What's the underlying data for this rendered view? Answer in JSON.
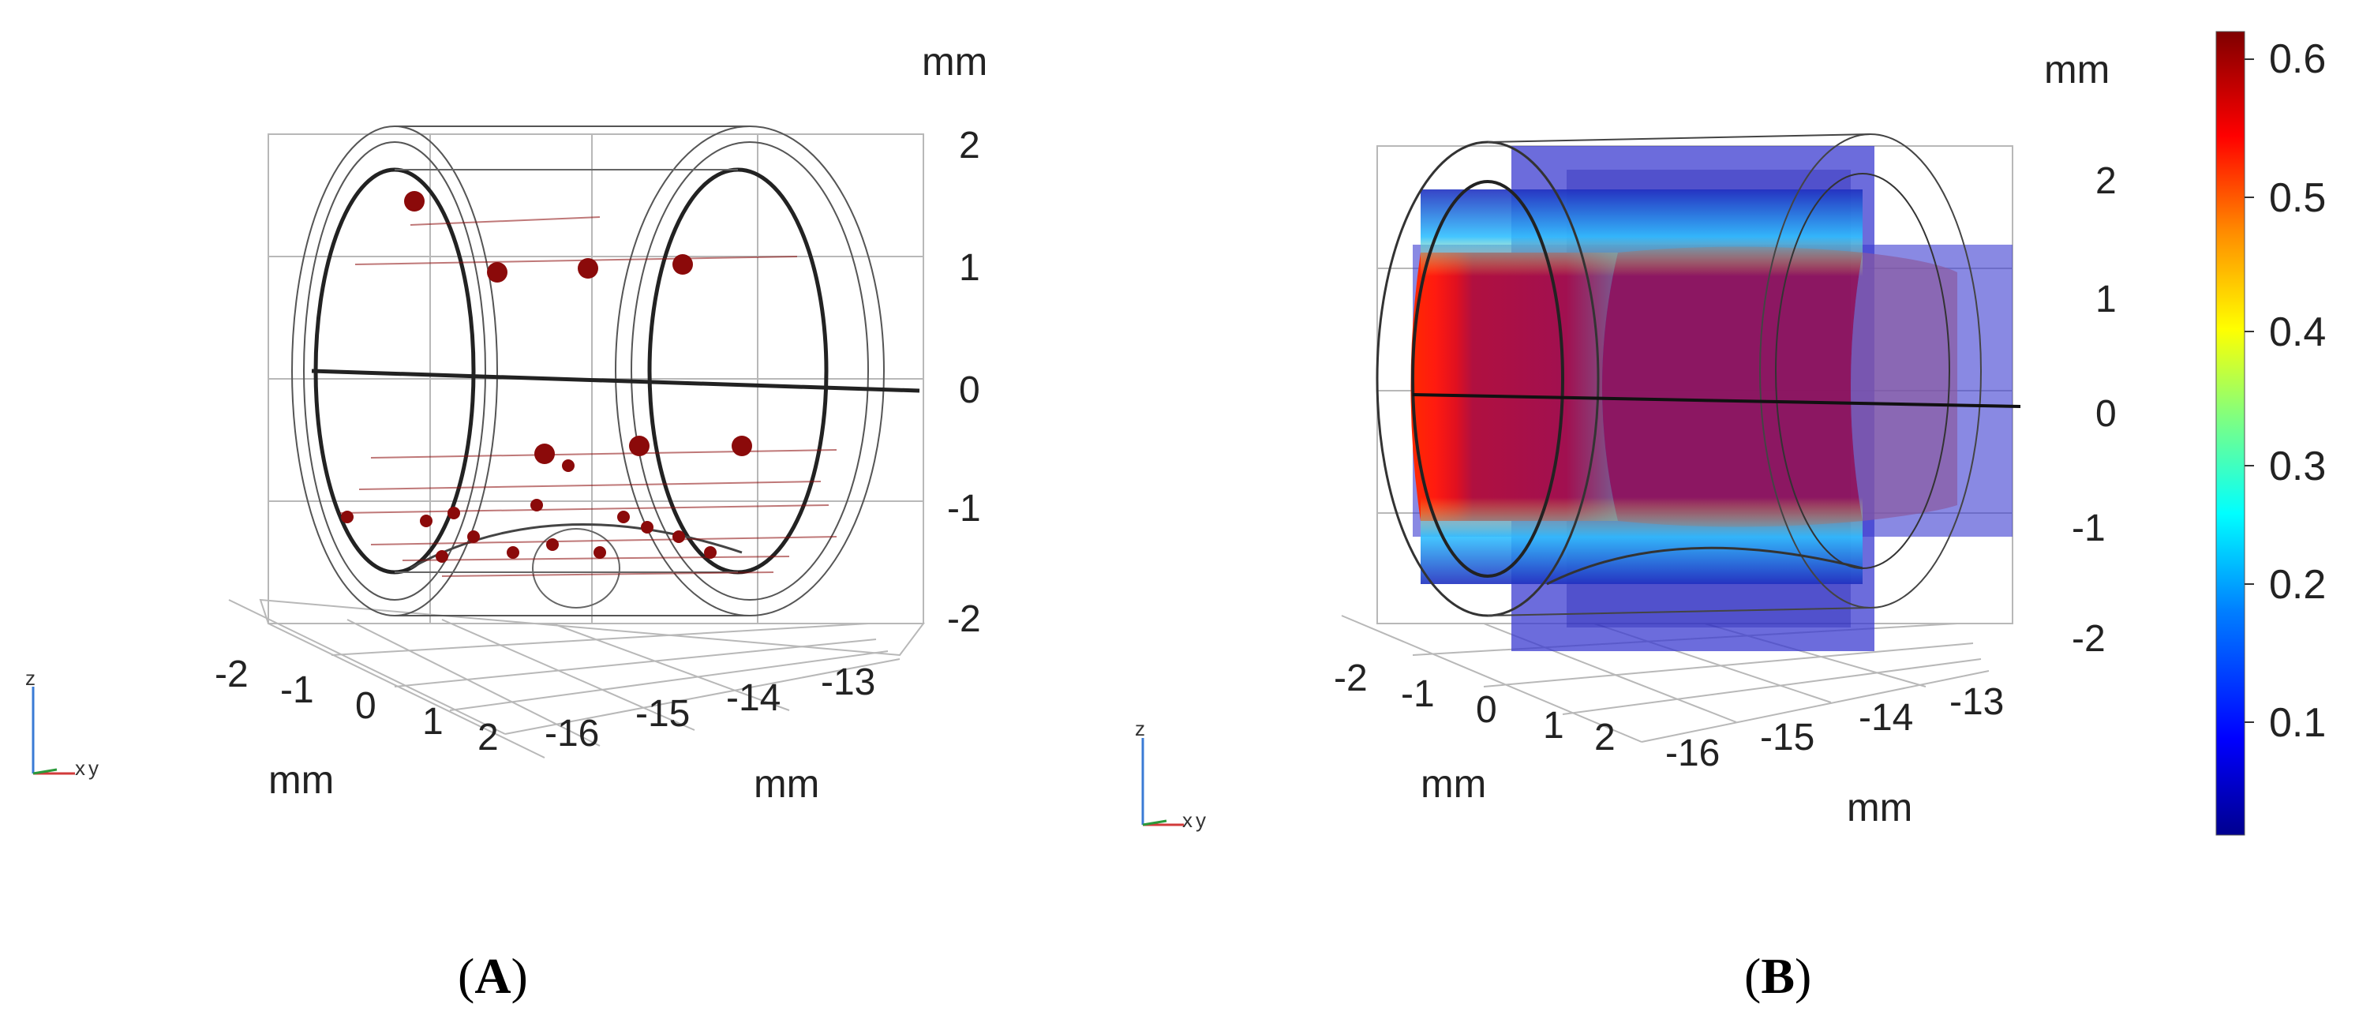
{
  "panels": [
    {
      "caption_letter": "A",
      "z_ticks": [
        "2",
        "1",
        "0",
        "-1",
        "-2"
      ],
      "x_ticks": [
        "-2",
        "-1",
        "0",
        "1",
        "2"
      ],
      "y_ticks": [
        "-16",
        "-15",
        "-14",
        "-13"
      ],
      "z_unit": "mm",
      "x_unit": "mm",
      "y_unit": "mm",
      "triad": {
        "z": "z",
        "x": "x",
        "y": "y"
      }
    },
    {
      "caption_letter": "B",
      "z_ticks": [
        "2",
        "1",
        "0",
        "-1",
        "-2"
      ],
      "x_ticks": [
        "-2",
        "-1",
        "0",
        "1",
        "2"
      ],
      "y_ticks": [
        "-16",
        "-15",
        "-14",
        "-13"
      ],
      "z_unit": "mm",
      "x_unit": "mm",
      "y_unit": "mm",
      "triad": {
        "z": "z",
        "x": "x",
        "y": "y"
      }
    }
  ],
  "colorbar": {
    "ticks": [
      "0.6",
      "0.5",
      "0.4",
      "0.3",
      "0.2",
      "0.1"
    ],
    "colors": [
      "#7f0000",
      "#ff0000",
      "#ff8c00",
      "#ffff00",
      "#80ff80",
      "#00ffff",
      "#0080ff",
      "#0000ff",
      "#00008f"
    ]
  },
  "colors": {
    "particle": "#8b0a0a",
    "wireframe": "#333333",
    "grid": "#b0b0b0"
  }
}
